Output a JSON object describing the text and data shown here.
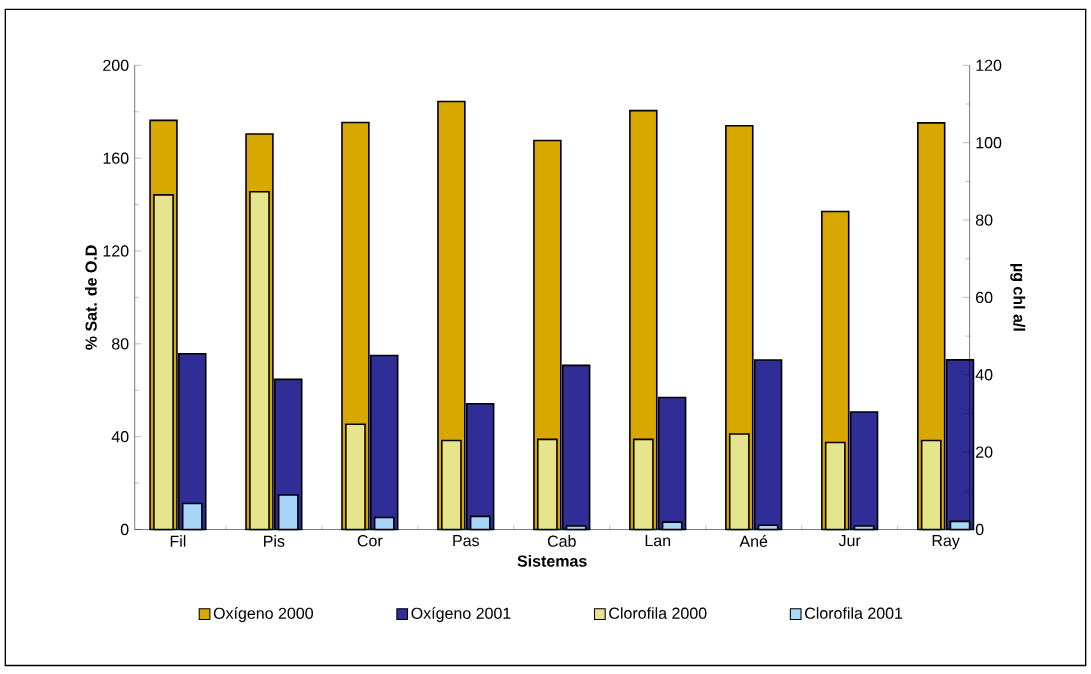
{
  "chart_data": {
    "type": "bar",
    "xlabel": "Sistemas",
    "ylabel": "% Sat. de O.D",
    "y2label": "µg chl a/l",
    "categories": [
      "Fil",
      "Pis",
      "Cor",
      "Pas",
      "Cab",
      "Lan",
      "Ané",
      "Jur",
      "Ray"
    ],
    "series": [
      {
        "name": "Oxígeno 2000",
        "color": "#d8a800",
        "values": [
          176.3,
          170.4,
          175.4,
          184.4,
          167.6,
          180.5,
          174.0,
          137.0,
          175.2
        ]
      },
      {
        "name": "Oxígeno 2001",
        "color": "#2e2e96",
        "values": [
          75.7,
          64.7,
          75.0,
          54.2,
          70.7,
          56.9,
          73.0,
          50.6,
          73.1
        ]
      },
      {
        "name": "Clorofila 2000",
        "color": "#e6e48c",
        "axis": "y2",
        "values": [
          86.5,
          87.3,
          27.2,
          23.0,
          23.3,
          23.3,
          24.7,
          22.5,
          23.0
        ]
      },
      {
        "name": "Clorofila 2001",
        "color": "#a6d6fa",
        "axis": "y2",
        "values": [
          6.7,
          8.9,
          3.1,
          3.4,
          0.9,
          1.9,
          1.1,
          0.9,
          2.1
        ]
      }
    ],
    "ylim": [
      0,
      200
    ],
    "yticks": [
      0,
      40,
      80,
      120,
      160,
      200
    ],
    "y2lim": [
      0,
      120
    ],
    "y2ticks": [
      0,
      20,
      40,
      60,
      80,
      100,
      120
    ],
    "legend": "bottom"
  }
}
